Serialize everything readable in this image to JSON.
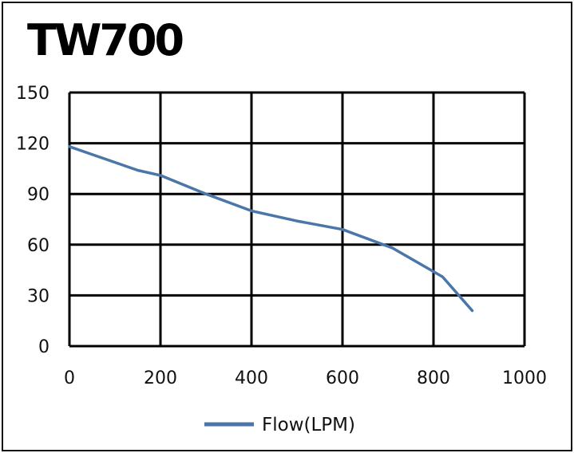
{
  "chart_data": {
    "type": "line",
    "title": "TW700",
    "xlabel": "",
    "ylabel": "",
    "xlim": [
      0,
      1000
    ],
    "ylim": [
      0,
      150
    ],
    "x_ticks": [
      0,
      200,
      400,
      600,
      800,
      1000
    ],
    "y_ticks": [
      0,
      30,
      60,
      90,
      120,
      150
    ],
    "grid": true,
    "legend_position": "bottom-center",
    "series": [
      {
        "name": "Flow(LPM)",
        "color": "#4a76a8",
        "x": [
          0,
          150,
          200,
          300,
          400,
          500,
          600,
          710,
          820,
          885
        ],
        "y": [
          118,
          104,
          101,
          90,
          80,
          74,
          69,
          58,
          41,
          21
        ]
      }
    ]
  }
}
